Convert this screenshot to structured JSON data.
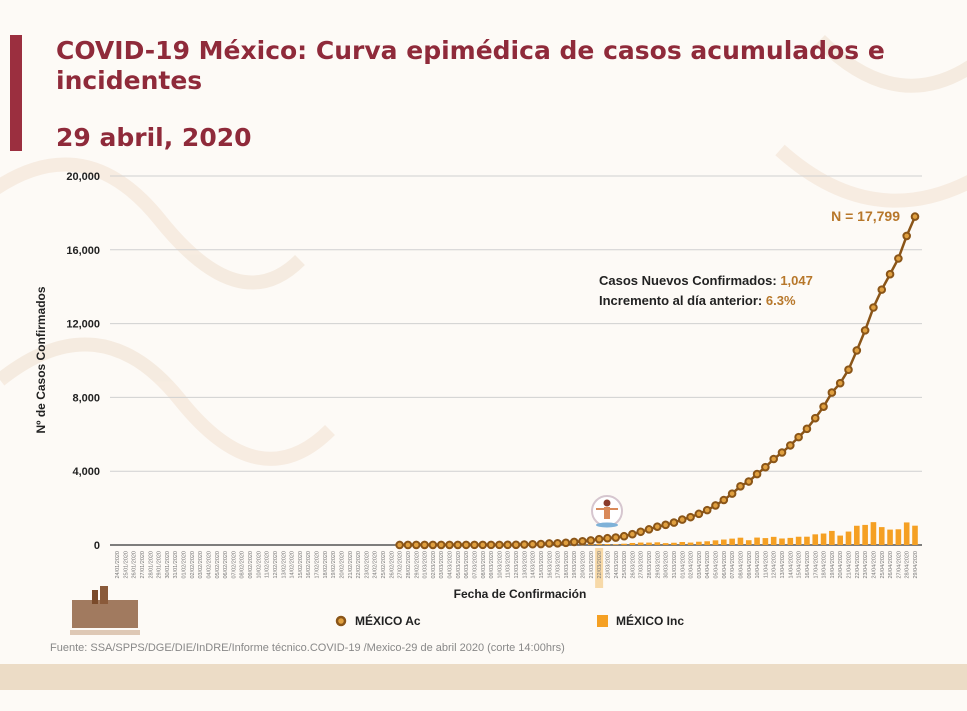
{
  "title": "COVID-19 México: Curva epimédica de casos acumulados e incidentes",
  "subtitle": "29 abril, 2020",
  "source": "Fuente: SSA/SPPS/DGE/DIE/InDRE/Informe técnico.COVID-19 /Mexico-29 de abril 2020 (corte 14:00hrs)",
  "colors": {
    "title": "#8f2a3a",
    "accumulated_line": "#8a5518",
    "accumulated_marker": "#e0a040",
    "incident_bar": "#f5a023",
    "highlight": "#f7d9a8"
  },
  "chart_data": {
    "type": "line+bar",
    "xlabel": "Fecha de Confirmación",
    "ylabel": "Nº de Casos Confirmados",
    "ylim": [
      0,
      20000
    ],
    "yticks": [
      "0",
      "4,000",
      "8,000",
      "12,000",
      "16,000",
      "20,000"
    ],
    "ytick_values": [
      0,
      4000,
      8000,
      12000,
      16000,
      20000
    ],
    "grid": "horizontal",
    "legend": "bottom",
    "highlighted_date": "22/03/2020",
    "annotations": {
      "total": "N = 17,799",
      "new_label": "Casos Nuevos Confirmados: ",
      "new_value": "1,047",
      "incr_label": "Incremento al día anterior: ",
      "incr_value": "6.3%"
    },
    "categories": [
      "24/01/2020",
      "25/01/2020",
      "26/01/2020",
      "27/01/2020",
      "28/01/2020",
      "29/01/2020",
      "30/01/2020",
      "31/01/2020",
      "01/02/2020",
      "02/02/2020",
      "03/02/2020",
      "04/02/2020",
      "05/02/2020",
      "06/02/2020",
      "07/02/2020",
      "08/02/2020",
      "09/02/2020",
      "10/02/2020",
      "11/02/2020",
      "12/02/2020",
      "13/02/2020",
      "14/02/2020",
      "15/02/2020",
      "16/02/2020",
      "17/02/2020",
      "18/02/2020",
      "19/02/2020",
      "20/02/2020",
      "21/02/2020",
      "22/02/2020",
      "23/02/2020",
      "24/02/2020",
      "25/02/2020",
      "26/02/2020",
      "27/02/2020",
      "28/02/2020",
      "29/02/2020",
      "01/03/2020",
      "02/03/2020",
      "03/03/2020",
      "04/03/2020",
      "05/03/2020",
      "06/03/2020",
      "07/03/2020",
      "08/03/2020",
      "09/03/2020",
      "10/03/2020",
      "11/03/2020",
      "12/03/2020",
      "13/03/2020",
      "14/03/2020",
      "15/03/2020",
      "16/03/2020",
      "17/03/2020",
      "18/03/2020",
      "19/03/2020",
      "20/03/2020",
      "21/03/2020",
      "22/03/2020",
      "23/03/2020",
      "24/03/2020",
      "25/03/2020",
      "26/03/2020",
      "27/03/2020",
      "28/03/2020",
      "29/03/2020",
      "30/03/2020",
      "31/03/2020",
      "01/04/2020",
      "02/04/2020",
      "03/04/2020",
      "04/04/2020",
      "05/04/2020",
      "06/04/2020",
      "07/04/2020",
      "08/04/2020",
      "09/04/2020",
      "10/04/2020",
      "11/04/2020",
      "12/04/2020",
      "13/04/2020",
      "14/04/2020",
      "15/04/2020",
      "16/04/2020",
      "17/04/2020",
      "18/04/2020",
      "19/04/2020",
      "20/04/2020",
      "21/04/2020",
      "22/04/2020",
      "23/04/2020",
      "24/04/2020",
      "25/04/2020",
      "26/04/2020",
      "27/04/2020",
      "28/04/2020",
      "29/04/2020"
    ],
    "series": [
      {
        "name": "MÉXICO Ac",
        "type": "line",
        "values": [
          null,
          null,
          null,
          null,
          null,
          null,
          null,
          null,
          null,
          null,
          null,
          null,
          null,
          null,
          null,
          null,
          null,
          null,
          null,
          null,
          null,
          null,
          null,
          null,
          null,
          null,
          null,
          null,
          null,
          null,
          null,
          null,
          null,
          null,
          1,
          2,
          4,
          5,
          5,
          5,
          5,
          5,
          6,
          7,
          7,
          7,
          7,
          8,
          12,
          26,
          41,
          53,
          82,
          93,
          118,
          164,
          203,
          251,
          316,
          367,
          405,
          475,
          585,
          717,
          848,
          993,
          1094,
          1215,
          1378,
          1510,
          1688,
          1890,
          2143,
          2439,
          2785,
          3181,
          3441,
          3844,
          4219,
          4661,
          5014,
          5399,
          5847,
          6297,
          6875,
          7497,
          8261,
          8772,
          9501,
          10544,
          11633,
          12872,
          13842,
          14677,
          15529,
          16752,
          17799
        ]
      },
      {
        "name": "MÉXICO Inc",
        "type": "bar",
        "values": [
          null,
          null,
          null,
          null,
          null,
          null,
          null,
          null,
          null,
          null,
          null,
          null,
          null,
          null,
          null,
          null,
          null,
          null,
          null,
          null,
          null,
          null,
          null,
          null,
          null,
          null,
          null,
          null,
          null,
          null,
          null,
          null,
          null,
          null,
          1,
          1,
          2,
          1,
          0,
          0,
          0,
          0,
          1,
          1,
          0,
          0,
          0,
          1,
          4,
          14,
          15,
          12,
          29,
          11,
          25,
          46,
          39,
          48,
          65,
          51,
          38,
          70,
          110,
          132,
          131,
          145,
          101,
          121,
          163,
          132,
          178,
          202,
          253,
          296,
          346,
          396,
          260,
          403,
          375,
          442,
          353,
          385,
          448,
          450,
          578,
          622,
          764,
          511,
          729,
          1043,
          1089,
          1239,
          970,
          835,
          852,
          1223,
          1047
        ]
      }
    ]
  }
}
